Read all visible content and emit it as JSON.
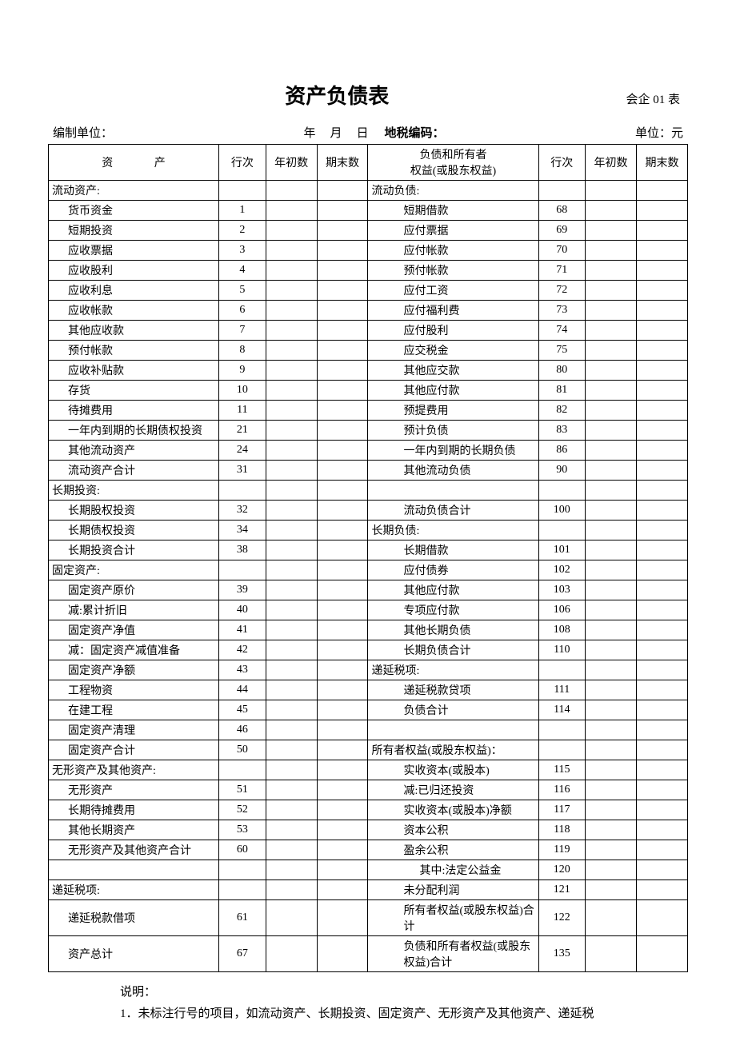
{
  "title": "资产负债表",
  "form_code": "会企 01 表",
  "meta": {
    "org_label": "编制单位：",
    "year": "年",
    "month": "月",
    "day": "日",
    "tax_label": "地税编码：",
    "unit_label": "单位：元"
  },
  "headers": {
    "asset": "资    产",
    "line": "行次",
    "begin": "年初数",
    "end": "期末数",
    "liab": "负债和所有者\n权益(或股东权益)"
  },
  "rows": [
    {
      "a": "流动资产:",
      "ai": 0,
      "an": "",
      "l": "流动负债:",
      "li": 0,
      "ln": ""
    },
    {
      "a": "货币资金",
      "ai": 1,
      "an": "1",
      "l": "短期借款",
      "li": 2,
      "ln": "68"
    },
    {
      "a": "短期投资",
      "ai": 1,
      "an": "2",
      "l": "应付票据",
      "li": 2,
      "ln": "69"
    },
    {
      "a": "应收票据",
      "ai": 1,
      "an": "3",
      "l": "应付帐款",
      "li": 2,
      "ln": "70"
    },
    {
      "a": "应收股利",
      "ai": 1,
      "an": "4",
      "l": "预付帐款",
      "li": 2,
      "ln": "71"
    },
    {
      "a": "应收利息",
      "ai": 1,
      "an": "5",
      "l": "应付工资",
      "li": 2,
      "ln": "72"
    },
    {
      "a": "应收帐款",
      "ai": 1,
      "an": "6",
      "l": "应付福利费",
      "li": 2,
      "ln": "73"
    },
    {
      "a": "其他应收款",
      "ai": 1,
      "an": "7",
      "l": "应付股利",
      "li": 2,
      "ln": "74"
    },
    {
      "a": "预付帐款",
      "ai": 1,
      "an": "8",
      "l": "应交税金",
      "li": 2,
      "ln": "75"
    },
    {
      "a": "应收补贴款",
      "ai": 1,
      "an": "9",
      "l": "其他应交款",
      "li": 2,
      "ln": "80"
    },
    {
      "a": "存货",
      "ai": 1,
      "an": "10",
      "l": "其他应付款",
      "li": 2,
      "ln": "81"
    },
    {
      "a": "待摊费用",
      "ai": 1,
      "an": "11",
      "l": "预提费用",
      "li": 2,
      "ln": "82"
    },
    {
      "a": "一年内到期的长期债权投资",
      "ai": 1,
      "an": "21",
      "l": "预计负债",
      "li": 2,
      "ln": "83"
    },
    {
      "a": "其他流动资产",
      "ai": 1,
      "an": "24",
      "l": "一年内到期的长期负债",
      "li": 2,
      "ln": "86"
    },
    {
      "a": "流动资产合计",
      "ai": 1,
      "an": "31",
      "l": "其他流动负债",
      "li": 2,
      "ln": "90"
    },
    {
      "a": "长期投资:",
      "ai": 0,
      "an": "",
      "l": "",
      "li": 0,
      "ln": ""
    },
    {
      "a": "长期股权投资",
      "ai": 1,
      "an": "32",
      "l": "流动负债合计",
      "li": 2,
      "ln": "100"
    },
    {
      "a": "长期债权投资",
      "ai": 1,
      "an": "34",
      "l": "长期负债:",
      "li": 0,
      "ln": ""
    },
    {
      "a": "长期投资合计",
      "ai": 1,
      "an": "38",
      "l": "长期借款",
      "li": 2,
      "ln": "101"
    },
    {
      "a": "固定资产:",
      "ai": 0,
      "an": "",
      "l": "应付债券",
      "li": 2,
      "ln": "102"
    },
    {
      "a": "固定资产原价",
      "ai": 1,
      "an": "39",
      "l": "其他应付款",
      "li": 2,
      "ln": "103"
    },
    {
      "a": "减:累计折旧",
      "ai": 1,
      "an": "40",
      "l": "专项应付款",
      "li": 2,
      "ln": "106"
    },
    {
      "a": "固定资产净值",
      "ai": 1,
      "an": "41",
      "l": "其他长期负债",
      "li": 2,
      "ln": "108"
    },
    {
      "a": "减：固定资产减值准备",
      "ai": 1,
      "an": "42",
      "l": "长期负债合计",
      "li": 2,
      "ln": "110"
    },
    {
      "a": "固定资产净额",
      "ai": 1,
      "an": "43",
      "l": "递延税项:",
      "li": 0,
      "ln": ""
    },
    {
      "a": "工程物资",
      "ai": 1,
      "an": "44",
      "l": "递延税款贷项",
      "li": 2,
      "ln": "111"
    },
    {
      "a": "在建工程",
      "ai": 1,
      "an": "45",
      "l": "负债合计",
      "li": 2,
      "ln": "114"
    },
    {
      "a": "固定资产清理",
      "ai": 1,
      "an": "46",
      "l": "",
      "li": 0,
      "ln": ""
    },
    {
      "a": "固定资产合计",
      "ai": 1,
      "an": "50",
      "l": "所有者权益(或股东权益)：",
      "li": 0,
      "ln": ""
    },
    {
      "a": "无形资产及其他资产:",
      "ai": 0,
      "an": "",
      "l": "实收资本(或股本)",
      "li": 2,
      "ln": "115"
    },
    {
      "a": "无形资产",
      "ai": 1,
      "an": "51",
      "l": "减:已归还投资",
      "li": 2,
      "ln": "116"
    },
    {
      "a": "长期待摊费用",
      "ai": 1,
      "an": "52",
      "l": "实收资本(或股本)净额",
      "li": 2,
      "ln": "117"
    },
    {
      "a": "其他长期资产",
      "ai": 1,
      "an": "53",
      "l": "资本公积",
      "li": 2,
      "ln": "118"
    },
    {
      "a": "无形资产及其他资产合计",
      "ai": 1,
      "an": "60",
      "l": "盈余公积",
      "li": 2,
      "ln": "119"
    },
    {
      "a": "",
      "ai": 0,
      "an": "",
      "l": "其中:法定公益金",
      "li": 3,
      "ln": "120"
    },
    {
      "a": "递延税项:",
      "ai": 0,
      "an": "",
      "l": "未分配利润",
      "li": 2,
      "ln": "121"
    },
    {
      "a": "递延税款借项",
      "ai": 1,
      "an": "61",
      "l": "所有者权益(或股东权益)合计",
      "li": 2,
      "ln": "122"
    },
    {
      "a": "资产总计",
      "ai": 1,
      "an": "67",
      "l": "负债和所有者权益(或股东权益)合计",
      "li": 2,
      "ln": "135"
    }
  ],
  "notes": {
    "label": "说明：",
    "line1": "1．未标注行号的项目，如流动资产、长期投资、固定资产、无形资产及其他资产、递延税"
  }
}
